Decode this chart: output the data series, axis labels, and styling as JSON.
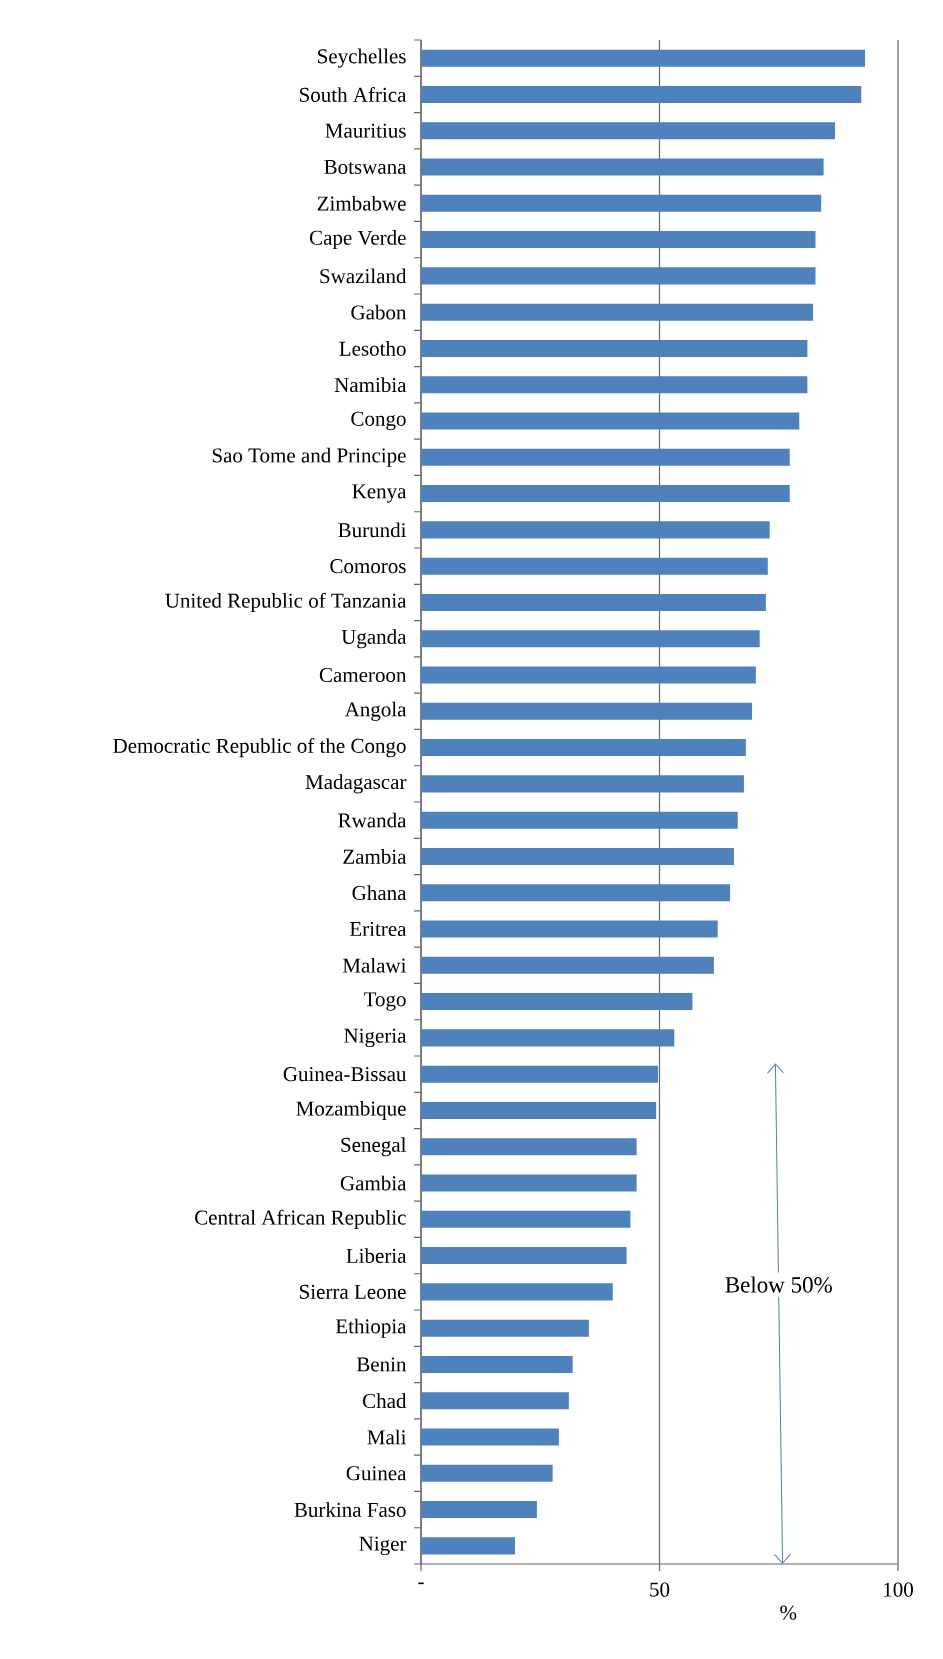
{
  "chart_data": {
    "type": "bar",
    "orientation": "horizontal",
    "xlabel": "%",
    "categories": [
      "Seychelles",
      "South Africa",
      "Mauritius",
      "Botswana",
      "Zimbabwe",
      "Cape Verde",
      "Swaziland",
      "Gabon",
      "Lesotho",
      "Namibia",
      "Congo",
      "Sao Tome and Principe",
      "Kenya",
      "Burundi",
      "Comoros",
      "United Republic of Tanzania",
      "Uganda",
      "Cameroon",
      "Angola",
      "Democratic Republic of the Congo",
      "Madagascar",
      "Rwanda",
      "Zambia",
      "Ghana",
      "Eritrea",
      "Malawi",
      "Togo",
      "Nigeria",
      "Guinea-Bissau",
      "Mozambique",
      "Senegal",
      "Gambia",
      "Central African Republic",
      "Liberia",
      "Sierra Leone",
      "Ethiopia",
      "Benin",
      "Chad",
      "Mali",
      "Guinea",
      "Burkina Faso",
      "Niger"
    ],
    "values": [
      93.1,
      92.3,
      86.8,
      84.4,
      83.9,
      82.7,
      82.7,
      82.2,
      81.0,
      81.0,
      79.3,
      77.3,
      77.3,
      73.1,
      72.7,
      72.3,
      71.0,
      70.2,
      69.4,
      68.1,
      67.7,
      66.4,
      65.6,
      64.8,
      62.2,
      61.4,
      56.9,
      53.1,
      49.7,
      49.3,
      45.2,
      45.2,
      43.9,
      43.1,
      40.2,
      35.2,
      31.8,
      31.0,
      28.9,
      27.6,
      24.3,
      19.7
    ],
    "color": "#4f81bd",
    "xlim": [
      0,
      100
    ],
    "xticks": [
      {
        "value": 0,
        "label": "-"
      },
      50,
      100
    ],
    "grid": "x",
    "annotations": [
      "Below 50%"
    ]
  }
}
